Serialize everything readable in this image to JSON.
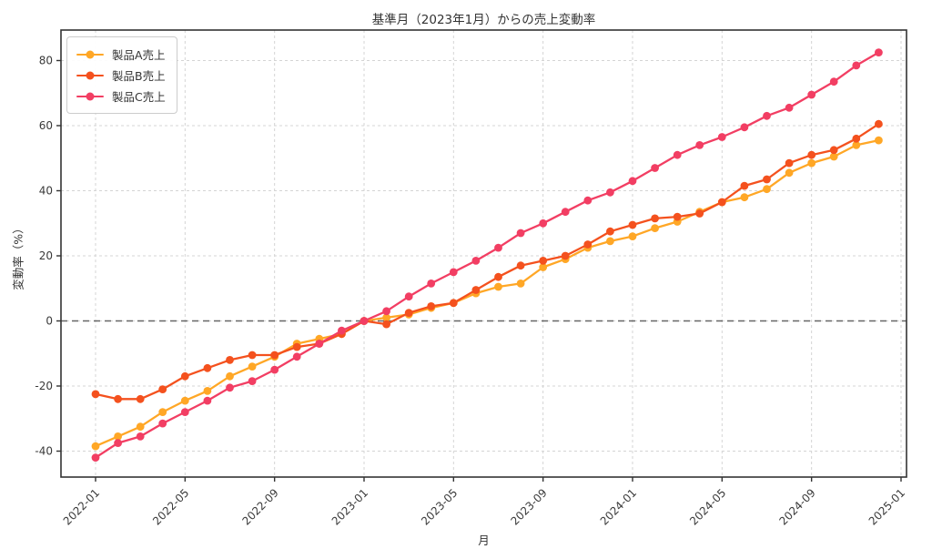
{
  "figure": {
    "background": "#ffffff",
    "spine_color": "#333333",
    "grid_color": "#d4d4d4",
    "zero_line_color": "#666666",
    "tick_label_color": "#3a3a3a"
  },
  "chart_data": {
    "type": "line",
    "title": "基準月（2023年1月）からの売上変動率",
    "xlabel": "月",
    "ylabel": "変動率（%）",
    "grid": true,
    "legend_position": "upper left",
    "zero_line": true,
    "ylim": [
      -48,
      89
    ],
    "y_ticks": [
      -40,
      -20,
      0,
      20,
      40,
      60,
      80
    ],
    "x": [
      "2022-01",
      "2022-02",
      "2022-03",
      "2022-04",
      "2022-05",
      "2022-06",
      "2022-07",
      "2022-08",
      "2022-09",
      "2022-10",
      "2022-11",
      "2022-12",
      "2023-01",
      "2023-02",
      "2023-03",
      "2023-04",
      "2023-05",
      "2023-06",
      "2023-07",
      "2023-08",
      "2023-09",
      "2023-10",
      "2023-11",
      "2023-12",
      "2024-01",
      "2024-02",
      "2024-03",
      "2024-04",
      "2024-05",
      "2024-06",
      "2024-07",
      "2024-08",
      "2024-09",
      "2024-10",
      "2024-11",
      "2024-12"
    ],
    "x_tick_labels": [
      "2022-01",
      "2022-05",
      "2022-09",
      "2023-01",
      "2023-05",
      "2023-09",
      "2024-01",
      "2024-05",
      "2024-09",
      "2025-01"
    ],
    "series": [
      {
        "name": "製品A売上",
        "color": "#FFA726",
        "values": [
          -38.5,
          -35.5,
          -32.5,
          -28,
          -24.5,
          -21.5,
          -17,
          -14,
          -11,
          -7,
          -5.5,
          -4,
          0,
          1,
          2,
          4,
          5.5,
          8.5,
          10.5,
          11.5,
          16.5,
          19,
          22.5,
          24.5,
          26,
          28.5,
          30.5,
          33.5,
          36.5,
          38,
          40.5,
          45.5,
          48.5,
          50.5,
          54,
          55.5
        ]
      },
      {
        "name": "製品B売上",
        "color": "#F4511E",
        "values": [
          -22.5,
          -24,
          -24,
          -21,
          -17,
          -14.5,
          -12,
          -10.5,
          -10.5,
          -8,
          -7,
          -4,
          0,
          -1,
          2.5,
          4.5,
          5.5,
          9.5,
          13.5,
          17,
          18.5,
          20,
          23.5,
          27.5,
          29.5,
          31.5,
          32,
          33,
          36.5,
          41.5,
          43.5,
          48.5,
          51,
          52.5,
          56,
          60.5
        ]
      },
      {
        "name": "製品C売上",
        "color": "#F23E63",
        "values": [
          -42,
          -37.5,
          -35.5,
          -31.5,
          -28,
          -24.5,
          -20.5,
          -18.5,
          -15,
          -11,
          -7,
          -3,
          0,
          3,
          7.5,
          11.5,
          15,
          18.5,
          22.5,
          27,
          30,
          33.5,
          37,
          39.5,
          43,
          47,
          51,
          54,
          56.5,
          59.5,
          63,
          65.5,
          69.5,
          73.5,
          78.5,
          82.5
        ]
      }
    ]
  }
}
